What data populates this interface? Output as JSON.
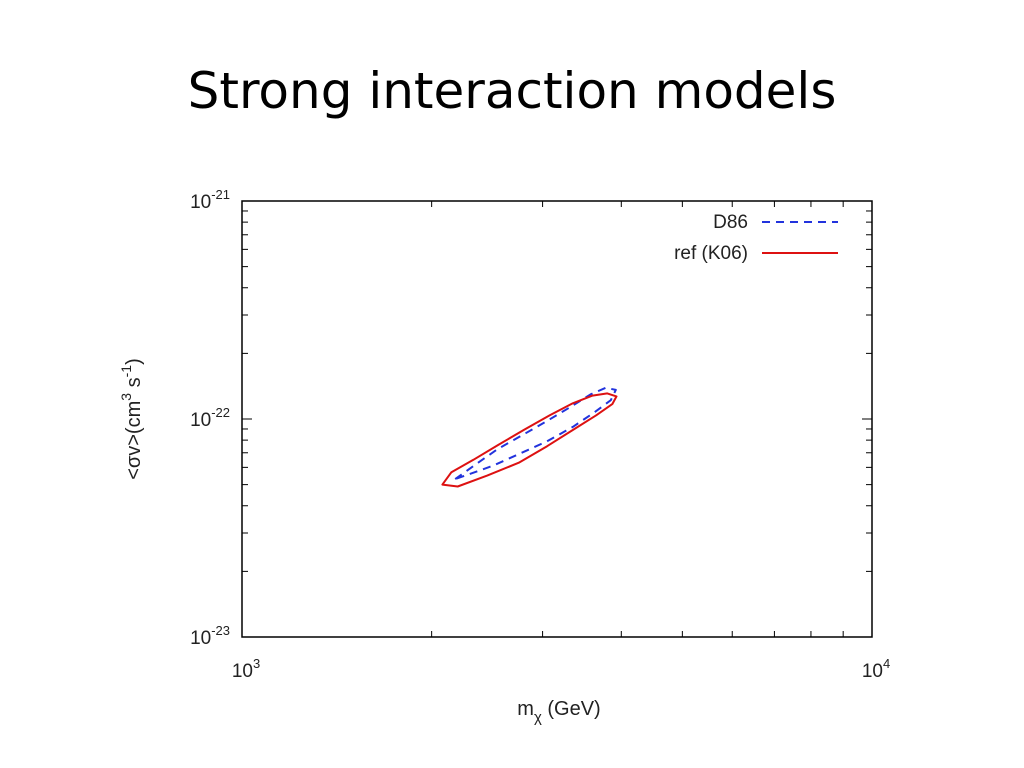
{
  "slide": {
    "title": "Strong interaction models"
  },
  "chart_data": {
    "type": "line",
    "xscale": "log",
    "yscale": "log",
    "xlim": [
      1000,
      10000
    ],
    "ylim": [
      1e-23,
      1e-21
    ],
    "xticks": [
      {
        "base": "10",
        "exp": "3"
      },
      {
        "base": "10",
        "exp": "4"
      }
    ],
    "yticks": [
      {
        "base": "10",
        "exp": "-23"
      },
      {
        "base": "10",
        "exp": "-22"
      },
      {
        "base": "10",
        "exp": "-21"
      }
    ],
    "xlabel": {
      "main": "m",
      "sub": "χ",
      "rest": " (GeV)"
    },
    "ylabel": {
      "part1": "<σv>(cm",
      "sup1": "3",
      "part2": " s",
      "sup2": "-1",
      "part3": ")"
    },
    "legend_position": "top-right",
    "series": [
      {
        "name": "D86",
        "color": "#2233dd",
        "dash": "dashed",
        "closed": true,
        "points": [
          [
            2180,
            5.3e-23
          ],
          [
            2350,
            6.2e-23
          ],
          [
            2550,
            7.3e-23
          ],
          [
            2780,
            8.4e-23
          ],
          [
            3050,
            9.8e-23
          ],
          [
            3330,
            1.14e-22
          ],
          [
            3580,
            1.3e-22
          ],
          [
            3780,
            1.39e-22
          ],
          [
            3920,
            1.36e-22
          ],
          [
            3850,
            1.22e-22
          ],
          [
            3620,
            1.07e-22
          ],
          [
            3350,
            9.2e-23
          ],
          [
            3050,
            7.9e-23
          ],
          [
            2750,
            6.9e-23
          ],
          [
            2500,
            6.1e-23
          ],
          [
            2300,
            5.6e-23
          ],
          [
            2180,
            5.3e-23
          ]
        ]
      },
      {
        "name": "ref (K06)",
        "color": "#dd1111",
        "dash": "solid",
        "closed": true,
        "points": [
          [
            2080,
            5e-23
          ],
          [
            2150,
            5.7e-23
          ],
          [
            2330,
            6.5e-23
          ],
          [
            2550,
            7.6e-23
          ],
          [
            2800,
            8.9e-23
          ],
          [
            3080,
            1.04e-22
          ],
          [
            3350,
            1.18e-22
          ],
          [
            3600,
            1.28e-22
          ],
          [
            3800,
            1.31e-22
          ],
          [
            3930,
            1.27e-22
          ],
          [
            3870,
            1.17e-22
          ],
          [
            3650,
            1.04e-22
          ],
          [
            3350,
            8.9e-23
          ],
          [
            3050,
            7.5e-23
          ],
          [
            2750,
            6.3e-23
          ],
          [
            2450,
            5.5e-23
          ],
          [
            2200,
            4.9e-23
          ],
          [
            2080,
            5e-23
          ]
        ]
      }
    ]
  }
}
